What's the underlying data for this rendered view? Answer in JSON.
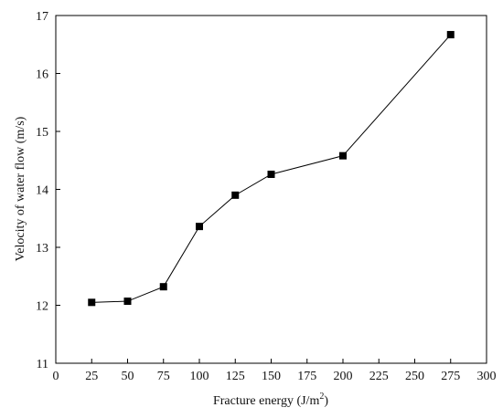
{
  "chart_data": {
    "type": "line",
    "title": "",
    "xlabel": "Fracture energy (J/m",
    "xlabel_superscript": "2",
    "xlabel_suffix": ")",
    "ylabel": "Velocity of water flow (m/s)",
    "xlim": [
      0,
      300
    ],
    "ylim": [
      11,
      17
    ],
    "xticks": [
      0,
      25,
      50,
      75,
      100,
      125,
      150,
      175,
      200,
      225,
      250,
      275,
      300
    ],
    "yticks": [
      11,
      12,
      13,
      14,
      15,
      16,
      17
    ],
    "grid": false,
    "marker": "square",
    "line_color": "#000000",
    "marker_color": "#000000",
    "series": [
      {
        "x": [
          25,
          50,
          75,
          100,
          125,
          150,
          200,
          275
        ],
        "y": [
          12.05,
          12.07,
          12.32,
          13.36,
          13.9,
          14.26,
          14.58,
          16.67
        ]
      }
    ]
  }
}
